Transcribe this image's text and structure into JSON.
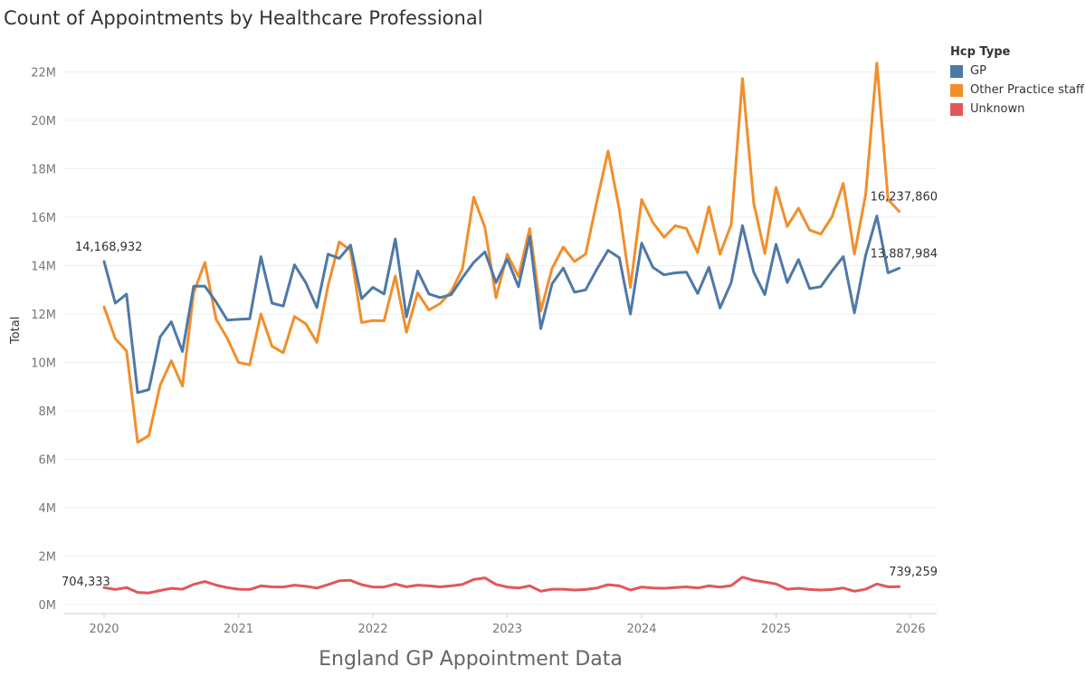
{
  "chart_data": {
    "type": "line",
    "title": "Count of Appointments by Healthcare Professional",
    "caption": "England GP Appointment Data",
    "ylabel": "Total",
    "xlabel": "",
    "legend": {
      "title": "Hcp Type",
      "placement": "top-right"
    },
    "x_start": "2020-01",
    "x_ticks": [
      "2020",
      "2021",
      "2022",
      "2023",
      "2024",
      "2025",
      "2026"
    ],
    "y_ticks": [
      "0M",
      "2M",
      "4M",
      "6M",
      "8M",
      "10M",
      "12M",
      "14M",
      "16M",
      "18M",
      "20M",
      "22M"
    ],
    "ylim": [
      0,
      23000000
    ],
    "grid": true,
    "series": [
      {
        "name": "GP",
        "color": "#4e79a7",
        "values": [
          14.17,
          12.45,
          12.82,
          8.75,
          8.88,
          11.05,
          11.68,
          10.45,
          13.15,
          13.15,
          12.5,
          11.75,
          11.78,
          11.8,
          14.37,
          12.45,
          12.33,
          14.03,
          13.3,
          12.27,
          14.47,
          14.3,
          14.85,
          12.63,
          13.1,
          12.83,
          15.1,
          11.88,
          13.78,
          12.83,
          12.68,
          12.8,
          13.5,
          14.13,
          14.57,
          13.3,
          14.27,
          13.13,
          15.2,
          11.4,
          13.25,
          13.9,
          12.9,
          13.0,
          13.85,
          14.63,
          14.33,
          12.0,
          14.93,
          13.93,
          13.62,
          13.7,
          13.73,
          12.85,
          13.93,
          12.25,
          13.3,
          15.65,
          13.73,
          12.8,
          14.88,
          13.3,
          14.25,
          13.05,
          13.13,
          13.78,
          14.37,
          12.05,
          14.42,
          16.05,
          13.7,
          13.89
        ],
        "labels": {
          "first": "14,168,932",
          "last": "13,887,984"
        }
      },
      {
        "name": "Other Practice staff",
        "color": "#f28e2b",
        "values": [
          12.3,
          10.98,
          10.48,
          6.7,
          6.98,
          9.05,
          10.07,
          9.02,
          12.88,
          14.13,
          11.78,
          11.0,
          10.0,
          9.9,
          12.0,
          10.67,
          10.4,
          11.9,
          11.6,
          10.83,
          13.17,
          14.98,
          14.63,
          11.65,
          11.73,
          11.72,
          13.57,
          11.25,
          12.87,
          12.17,
          12.43,
          12.93,
          13.87,
          16.83,
          15.58,
          12.67,
          14.47,
          13.55,
          15.53,
          12.13,
          13.88,
          14.77,
          14.17,
          14.48,
          16.65,
          18.73,
          16.33,
          13.1,
          16.73,
          15.78,
          15.17,
          15.65,
          15.53,
          14.53,
          16.43,
          14.47,
          15.7,
          21.73,
          16.6,
          14.5,
          17.23,
          15.62,
          16.37,
          15.47,
          15.3,
          16.02,
          17.4,
          14.48,
          16.93,
          22.37,
          16.73,
          16.24
        ],
        "labels": {
          "first": "",
          "last": "16,237,860"
        }
      },
      {
        "name": "Unknown",
        "color": "#e15759",
        "values": [
          0.7,
          0.62,
          0.7,
          0.5,
          0.48,
          0.58,
          0.67,
          0.63,
          0.83,
          0.95,
          0.8,
          0.7,
          0.63,
          0.62,
          0.77,
          0.73,
          0.72,
          0.8,
          0.75,
          0.68,
          0.82,
          0.98,
          1.0,
          0.82,
          0.72,
          0.72,
          0.85,
          0.73,
          0.8,
          0.77,
          0.73,
          0.77,
          0.83,
          1.03,
          1.1,
          0.83,
          0.72,
          0.68,
          0.77,
          0.55,
          0.63,
          0.63,
          0.6,
          0.62,
          0.68,
          0.82,
          0.77,
          0.6,
          0.72,
          0.68,
          0.67,
          0.7,
          0.73,
          0.68,
          0.77,
          0.72,
          0.78,
          1.13,
          1.0,
          0.93,
          0.85,
          0.63,
          0.67,
          0.62,
          0.6,
          0.62,
          0.68,
          0.55,
          0.63,
          0.85,
          0.73,
          0.74
        ],
        "labels": {
          "first": "704,333",
          "last": "739,259"
        }
      }
    ]
  }
}
